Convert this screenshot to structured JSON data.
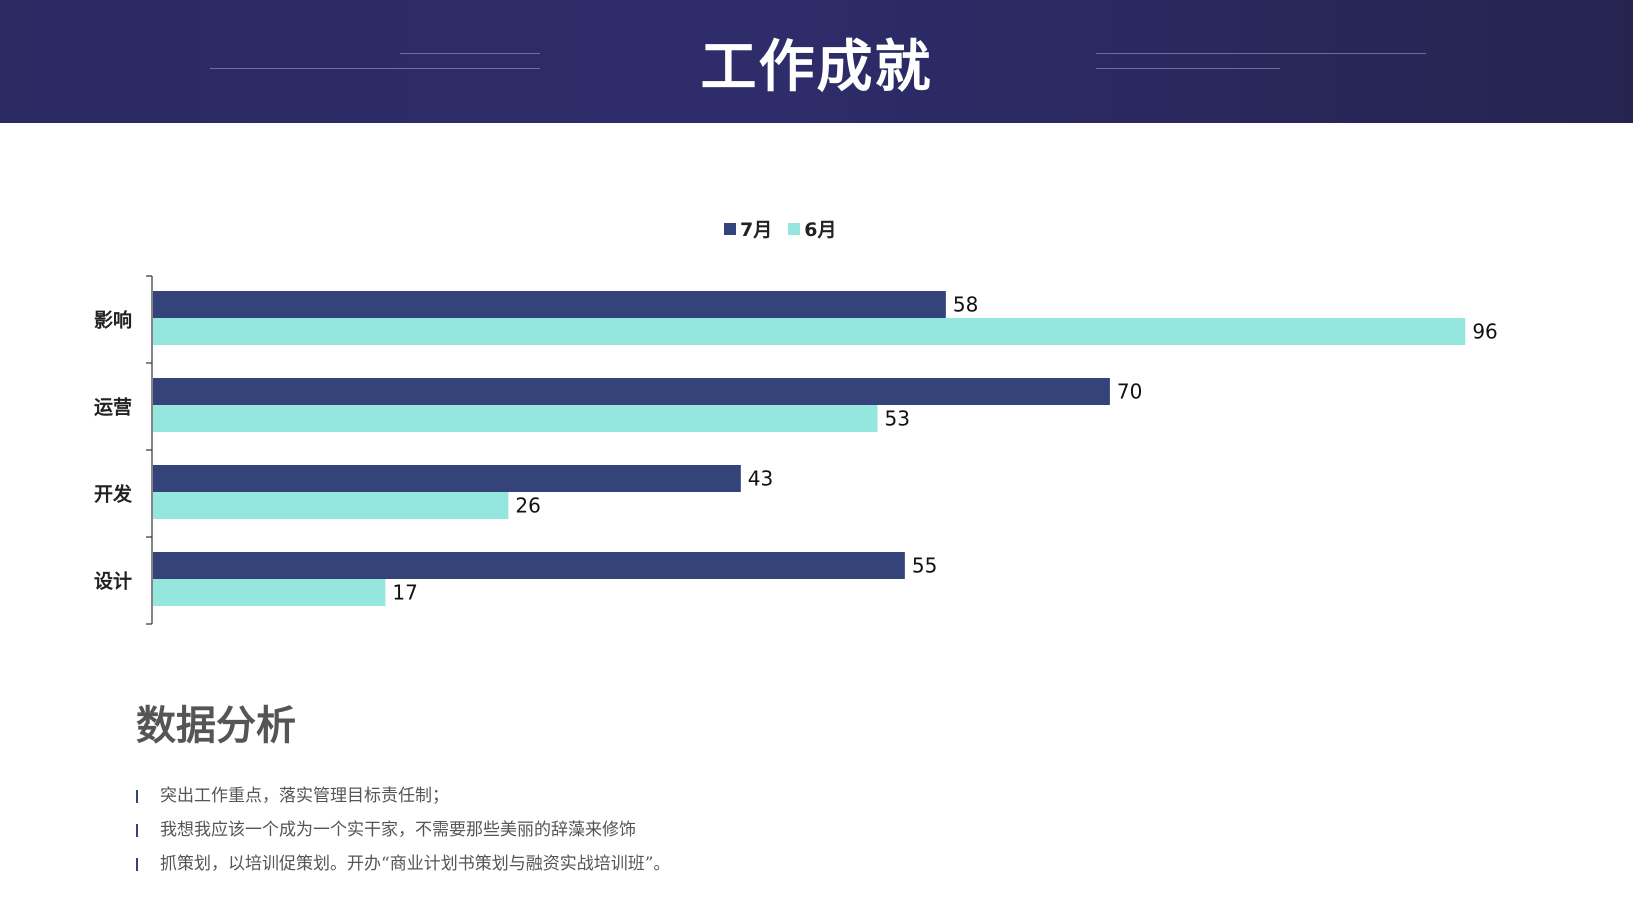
{
  "header": {
    "title": "工作成就"
  },
  "chart_data": {
    "type": "bar",
    "orientation": "horizontal",
    "categories": [
      "影响",
      "运营",
      "开发",
      "设计"
    ],
    "series": [
      {
        "name": "7月",
        "values": [
          58,
          70,
          43,
          55
        ],
        "color": "#34437a"
      },
      {
        "name": "6月",
        "values": [
          96,
          53,
          26,
          17
        ],
        "color": "#94e6df"
      }
    ],
    "legend_position": "top",
    "data_labels": true,
    "xlim": [
      0,
      100
    ],
    "grid": false
  },
  "analysis": {
    "title": "数据分析",
    "bullets": [
      "突出工作重点，落实管理目标责任制；",
      "我想我应该一个成为一个实干家，不需要那些美丽的辞藻来修饰",
      "抓策划，以培训促策划。开办“商业计划书策划与融资实战培训班”。"
    ],
    "bullet_color": "#34437a"
  }
}
